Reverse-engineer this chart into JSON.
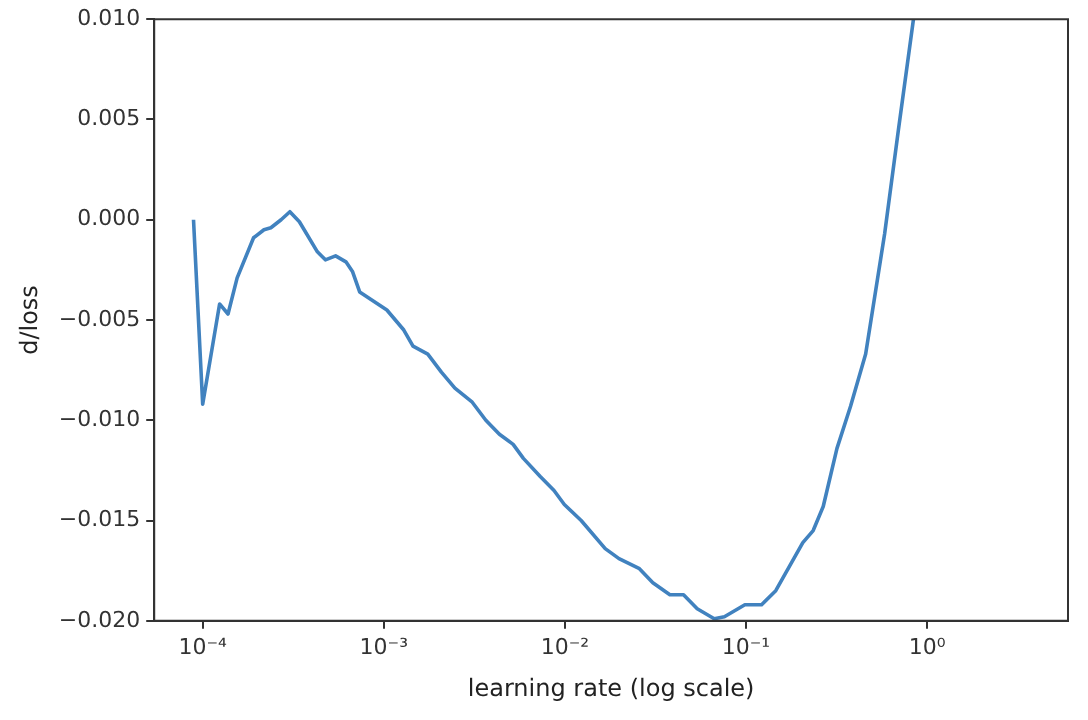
{
  "chart_data": {
    "type": "line",
    "xlabel": "learning rate (log scale)",
    "ylabel": "d/loss",
    "log": "x",
    "grid": false,
    "legend": false,
    "marker": "none",
    "line_style": "solid",
    "xlim": [
      5.4e-05,
      6.0
    ],
    "ylim": [
      -0.02,
      0.01
    ],
    "xticks": [
      {
        "value": 0.0001,
        "label": "10⁻⁴"
      },
      {
        "value": 0.001,
        "label": "10⁻³"
      },
      {
        "value": 0.01,
        "label": "10⁻²"
      },
      {
        "value": 0.1,
        "label": "10⁻¹"
      },
      {
        "value": 1,
        "label": "10⁰"
      }
    ],
    "yticks": [
      {
        "value": -0.02,
        "label": "−0.020"
      },
      {
        "value": -0.015,
        "label": "−0.015"
      },
      {
        "value": -0.01,
        "label": "−0.010"
      },
      {
        "value": -0.005,
        "label": "−0.005"
      },
      {
        "value": 0,
        "label": "0.000"
      },
      {
        "value": 0.005,
        "label": "0.005"
      },
      {
        "value": 0.01,
        "label": "0.010"
      }
    ],
    "series": [
      {
        "color": "#4182bf",
        "x": [
          8.9e-05,
          0.0001,
          0.000124,
          0.000138,
          0.000155,
          0.000191,
          0.000218,
          0.000238,
          0.000271,
          0.000303,
          0.000342,
          0.00043,
          0.000476,
          0.000542,
          0.000618,
          0.000673,
          0.000736,
          0.00104,
          0.00129,
          0.00145,
          0.00175,
          0.00208,
          0.00247,
          0.00308,
          0.00366,
          0.00435,
          0.00518,
          0.0059,
          0.00731,
          0.00871,
          0.00993,
          0.0123,
          0.0167,
          0.0199,
          0.0258,
          0.0306,
          0.038,
          0.0452,
          0.0538,
          0.0668,
          0.076,
          0.0986,
          0.122,
          0.146,
          0.206,
          0.235,
          0.267,
          0.318,
          0.378,
          0.458,
          0.583,
          0.695,
          0.841
        ],
        "values": [
          0.0,
          -0.0092,
          -0.0042,
          -0.0047,
          -0.0029,
          -0.0009,
          -0.0005,
          -0.0004,
          0.0,
          0.0004,
          -0.0001,
          -0.0016,
          -0.002,
          -0.0018,
          -0.0021,
          -0.0026,
          -0.0036,
          -0.0045,
          -0.0055,
          -0.0063,
          -0.0067,
          -0.0076,
          -0.0084,
          -0.0091,
          -0.01,
          -0.0107,
          -0.0112,
          -0.0119,
          -0.0128,
          -0.0135,
          -0.0142,
          -0.015,
          -0.0164,
          -0.0169,
          -0.0174,
          -0.0181,
          -0.0187,
          -0.0187,
          -0.0194,
          -0.0199,
          -0.0198,
          -0.0192,
          -0.0192,
          -0.0185,
          -0.0161,
          -0.0155,
          -0.0143,
          -0.0114,
          -0.0093,
          -0.0067,
          -0.0007,
          0.0045,
          0.01
        ]
      }
    ]
  }
}
